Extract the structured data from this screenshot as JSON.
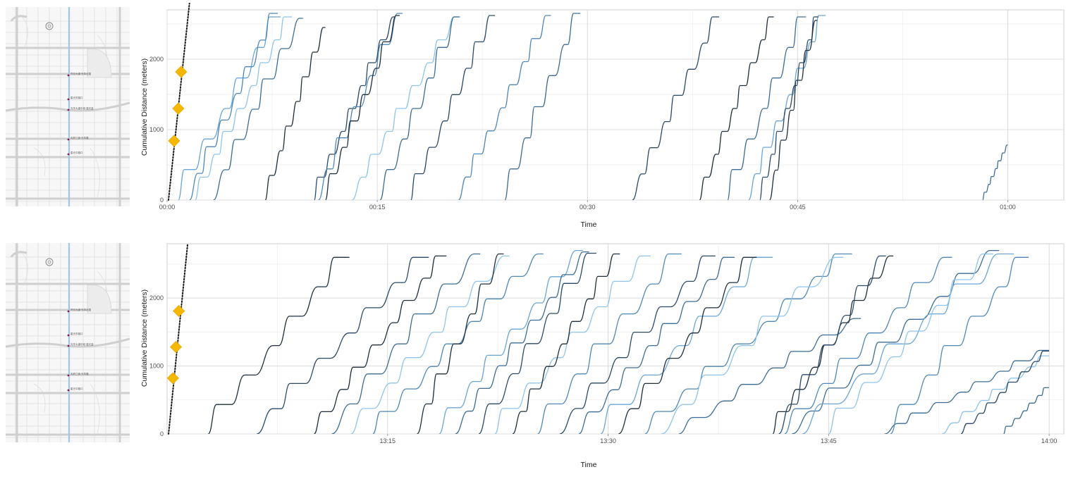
{
  "colors": {
    "series_palette": [
      "#1f2f3d",
      "#2b4a68",
      "#3c6d96",
      "#4f88b8",
      "#6aa5d6",
      "#8ec4ea"
    ],
    "stop_marker": "#f5b800",
    "reference_line": "#1a1a1a",
    "grid_major": "#dcdcdc",
    "grid_minor": "#eeeeee",
    "map_route": "#9ec7ec",
    "map_station": "#8a1a40"
  },
  "maps": [
    {
      "station_labels": [
        "开元大道·光华北路",
        "星光东路口",
        "光华大道中段·蓝光金",
        "天府三街·光华路",
        "星光中路口"
      ]
    },
    {
      "station_labels": [
        "开元大道·光华北路",
        "星光东路口",
        "光华大道中段·蓝光金",
        "天府三街·光华路",
        "星光中路口"
      ]
    }
  ],
  "chart_data": [
    {
      "type": "line",
      "xlabel": "Time",
      "ylabel": "Cumulative Distance (meters)",
      "x_unit": "minutes",
      "xlim": [
        0,
        64
      ],
      "ylim": [
        0,
        2700
      ],
      "x_ticks": [
        {
          "value": 0,
          "label": "00:00"
        },
        {
          "value": 15,
          "label": "00:15"
        },
        {
          "value": 30,
          "label": "00:30"
        },
        {
          "value": 45,
          "label": "00:45"
        },
        {
          "value": 60,
          "label": "01:00"
        }
      ],
      "y_ticks": [
        {
          "value": 0,
          "label": "0"
        },
        {
          "value": 1000,
          "label": "1000"
        },
        {
          "value": 2000,
          "label": "2000"
        }
      ],
      "grid": true,
      "reference_line": {
        "x": [
          0.1,
          1.6
        ],
        "y": [
          0,
          2800
        ],
        "style": "dotted"
      },
      "stop_markers": [
        {
          "x": 0.5,
          "y": 840
        },
        {
          "x": 0.8,
          "y": 1300
        },
        {
          "x": 1.0,
          "y": 1820
        }
      ],
      "series": [
        {
          "color": 4,
          "start": 0.8,
          "end": 8.1,
          "ymax": 2600
        },
        {
          "color": 3,
          "start": 1.6,
          "end": 7.9,
          "ymax": 2650
        },
        {
          "color": 5,
          "start": 2.0,
          "end": 8.9,
          "ymax": 2600
        },
        {
          "color": 2,
          "start": 3.3,
          "end": 9.7,
          "ymax": 2580
        },
        {
          "color": 0,
          "start": 7.0,
          "end": 11.3,
          "ymax": 2450
        },
        {
          "color": 1,
          "start": 10.5,
          "end": 16.3,
          "ymax": 2600
        },
        {
          "color": 3,
          "start": 10.8,
          "end": 16.8,
          "ymax": 2650
        },
        {
          "color": 0,
          "start": 11.3,
          "end": 16.6,
          "ymax": 2620
        },
        {
          "color": 5,
          "start": 13.2,
          "end": 20.8,
          "ymax": 2600
        },
        {
          "color": 2,
          "start": 15.2,
          "end": 20.9,
          "ymax": 2600
        },
        {
          "color": 1,
          "start": 17.4,
          "end": 23.4,
          "ymax": 2620
        },
        {
          "color": 3,
          "start": 20.8,
          "end": 27.4,
          "ymax": 2620
        },
        {
          "color": 2,
          "start": 24.1,
          "end": 29.5,
          "ymax": 2650
        },
        {
          "color": 1,
          "start": 33.2,
          "end": 39.4,
          "ymax": 2600
        },
        {
          "color": 0,
          "start": 38.0,
          "end": 43.3,
          "ymax": 2600
        },
        {
          "color": 2,
          "start": 40.0,
          "end": 45.6,
          "ymax": 2600
        },
        {
          "color": 4,
          "start": 41.5,
          "end": 47.0,
          "ymax": 2620
        },
        {
          "color": 1,
          "start": 42.3,
          "end": 46.5,
          "ymax": 2600
        },
        {
          "color": 0,
          "start": 43.0,
          "end": 46.4,
          "ymax": 2550
        },
        {
          "color": 2,
          "start": 58.2,
          "end": 60.0,
          "ymax": 780
        }
      ]
    },
    {
      "type": "line",
      "xlabel": "Time",
      "ylabel": "Cumulative Distance (meters)",
      "x_unit": "minutes",
      "xlim": [
        780,
        841
      ],
      "ylim": [
        0,
        2800
      ],
      "x_ticks": [
        {
          "value": 795,
          "label": "13:15"
        },
        {
          "value": 810,
          "label": "13:30"
        },
        {
          "value": 825,
          "label": "13:45"
        },
        {
          "value": 840,
          "label": "14:00"
        }
      ],
      "y_ticks": [
        {
          "value": 0,
          "label": "0"
        },
        {
          "value": 1000,
          "label": "1000"
        },
        {
          "value": 2000,
          "label": "2000"
        }
      ],
      "grid": true,
      "reference_line": {
        "x": [
          780.1,
          781.4
        ],
        "y": [
          0,
          2800
        ],
        "style": "dotted"
      },
      "stop_markers": [
        {
          "x": 780.4,
          "y": 820
        },
        {
          "x": 780.6,
          "y": 1280
        },
        {
          "x": 780.8,
          "y": 1810
        }
      ],
      "series": [
        {
          "color": 0,
          "start": 782.8,
          "end": 792.4,
          "ymax": 2600
        },
        {
          "color": 1,
          "start": 786.1,
          "end": 797.8,
          "ymax": 2600
        },
        {
          "color": 0,
          "start": 790.0,
          "end": 799.0,
          "ymax": 2620
        },
        {
          "color": 2,
          "start": 791.2,
          "end": 801.3,
          "ymax": 2650
        },
        {
          "color": 5,
          "start": 792.5,
          "end": 803.3,
          "ymax": 2620
        },
        {
          "color": 3,
          "start": 794.0,
          "end": 805.6,
          "ymax": 2650
        },
        {
          "color": 0,
          "start": 797.0,
          "end": 802.9,
          "ymax": 2650
        },
        {
          "color": 4,
          "start": 798.5,
          "end": 808.3,
          "ymax": 2700
        },
        {
          "color": 2,
          "start": 799.6,
          "end": 808.7,
          "ymax": 2680
        },
        {
          "color": 1,
          "start": 801.2,
          "end": 809.2,
          "ymax": 2660
        },
        {
          "color": 5,
          "start": 802.3,
          "end": 812.9,
          "ymax": 2620
        },
        {
          "color": 0,
          "start": 803.5,
          "end": 810.8,
          "ymax": 2650
        },
        {
          "color": 3,
          "start": 805.2,
          "end": 815.0,
          "ymax": 2650
        },
        {
          "color": 1,
          "start": 806.7,
          "end": 817.3,
          "ymax": 2620
        },
        {
          "color": 2,
          "start": 808.0,
          "end": 818.6,
          "ymax": 2600
        },
        {
          "color": 4,
          "start": 809.5,
          "end": 821.2,
          "ymax": 2600
        },
        {
          "color": 0,
          "start": 810.7,
          "end": 820.1,
          "ymax": 2600
        },
        {
          "color": 3,
          "start": 812.5,
          "end": 826.6,
          "ymax": 2650
        },
        {
          "color": 5,
          "start": 813.6,
          "end": 826.0,
          "ymax": 2600
        },
        {
          "color": 2,
          "start": 814.8,
          "end": 827.2,
          "ymax": 1700
        },
        {
          "color": 0,
          "start": 821.2,
          "end": 829.4,
          "ymax": 2620
        },
        {
          "color": 1,
          "start": 821.6,
          "end": 828.9,
          "ymax": 2620
        },
        {
          "color": 3,
          "start": 822.0,
          "end": 833.4,
          "ymax": 2600
        },
        {
          "color": 2,
          "start": 822.5,
          "end": 836.6,
          "ymax": 2700
        },
        {
          "color": 4,
          "start": 823.2,
          "end": 837.6,
          "ymax": 2650
        },
        {
          "color": 5,
          "start": 825.0,
          "end": 836.2,
          "ymax": 2650
        },
        {
          "color": 2,
          "start": 828.8,
          "end": 840.0,
          "ymax": 1230
        },
        {
          "color": 3,
          "start": 829.2,
          "end": 838.6,
          "ymax": 2600
        },
        {
          "color": 5,
          "start": 832.7,
          "end": 840.0,
          "ymax": 1150
        },
        {
          "color": 1,
          "start": 834.0,
          "end": 840.0,
          "ymax": 1220
        },
        {
          "color": 2,
          "start": 836.9,
          "end": 840.0,
          "ymax": 680
        }
      ]
    }
  ]
}
